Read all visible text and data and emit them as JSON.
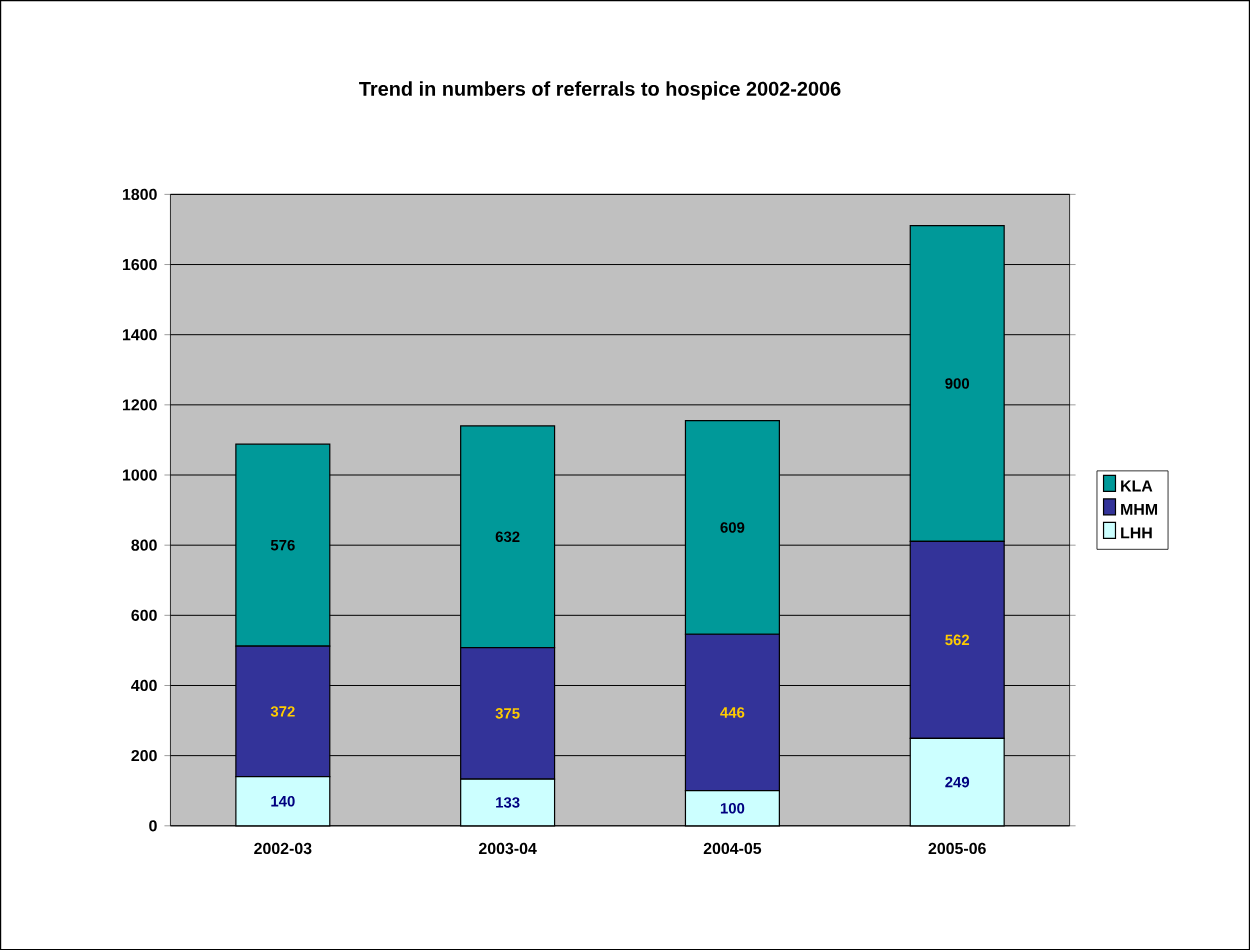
{
  "chart_data": {
    "type": "bar",
    "stacked": true,
    "title": "Trend in numbers of referrals to hospice 2002-2006",
    "categories": [
      "2002-03",
      "2003-04",
      "2004-05",
      "2005-06"
    ],
    "series": [
      {
        "name": "LHH",
        "color": "#ccffff",
        "values": [
          140,
          133,
          100,
          249
        ]
      },
      {
        "name": "MHM",
        "color": "#333399",
        "values": [
          372,
          375,
          446,
          562
        ]
      },
      {
        "name": "KLA",
        "color": "#009999",
        "values": [
          576,
          632,
          609,
          900
        ]
      }
    ],
    "ylim": [
      0,
      1800
    ],
    "yticks": [
      0,
      200,
      400,
      600,
      800,
      1000,
      1200,
      1400,
      1600,
      1800
    ],
    "grid": "y",
    "legend": "right",
    "data_labels": true
  }
}
